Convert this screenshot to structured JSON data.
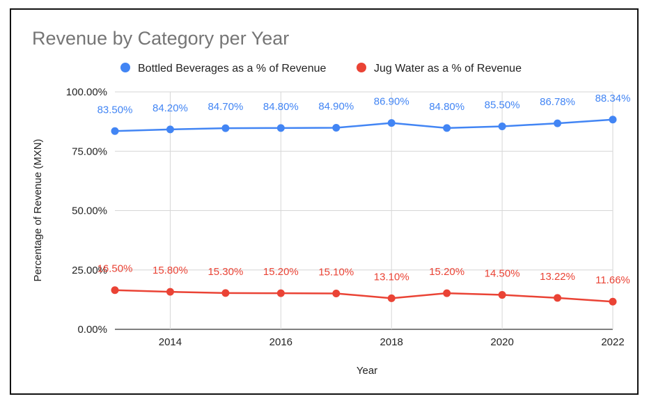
{
  "chart_data": {
    "type": "line",
    "title": "Revenue by Category per Year",
    "xlabel": "Year",
    "ylabel": "Percentage of Revenue (MXN)",
    "x": [
      2013,
      2014,
      2015,
      2016,
      2017,
      2018,
      2019,
      2020,
      2021,
      2022
    ],
    "xlim": [
      2013,
      2022
    ],
    "xticks": [
      "2014",
      "2016",
      "2018",
      "2020",
      "2022"
    ],
    "ylim": [
      0,
      100
    ],
    "yticks": [
      "0.00%",
      "25.00%",
      "50.00%",
      "75.00%",
      "100.00%"
    ],
    "grid": true,
    "legend_position": "top",
    "series": [
      {
        "name": "Bottled Beverages as a % of Revenue",
        "color": "#4285f4",
        "values": [
          83.5,
          84.2,
          84.7,
          84.8,
          84.9,
          86.9,
          84.8,
          85.5,
          86.78,
          88.34
        ],
        "labels": [
          "83.50%",
          "84.20%",
          "84.70%",
          "84.80%",
          "84.90%",
          "86.90%",
          "84.80%",
          "85.50%",
          "86.78%",
          "88.34%"
        ]
      },
      {
        "name": "Jug Water as a % of Revenue",
        "color": "#ea4335",
        "values": [
          16.5,
          15.8,
          15.3,
          15.2,
          15.1,
          13.1,
          15.2,
          14.5,
          13.22,
          11.66
        ],
        "labels": [
          "16.50%",
          "15.80%",
          "15.30%",
          "15.20%",
          "15.10%",
          "13.10%",
          "15.20%",
          "14.50%",
          "13.22%",
          "11.66%"
        ]
      }
    ]
  }
}
